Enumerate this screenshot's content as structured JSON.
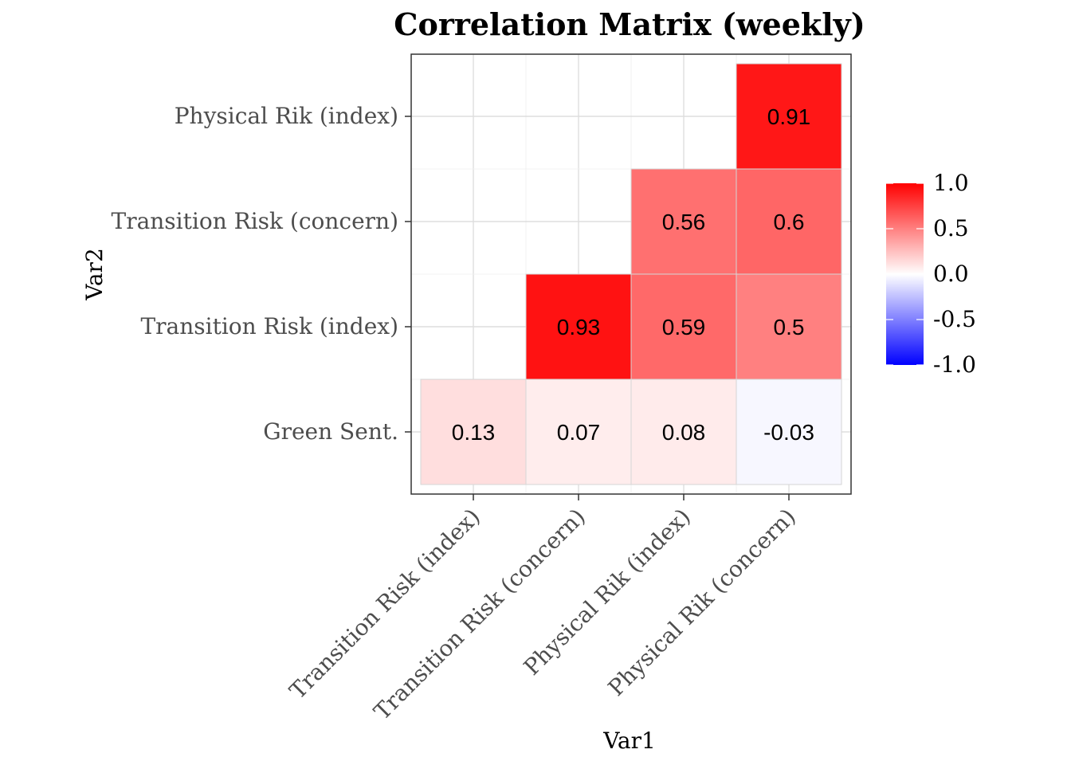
{
  "chart_data": {
    "type": "heatmap",
    "title": "Correlation Matrix (weekly)",
    "xlabel": "Var1",
    "ylabel": "Var2",
    "x_categories": [
      "Transition Risk (index)",
      "Transition Risk (concern)",
      "Physical Rik (index)",
      "Physical Rik (concern)"
    ],
    "y_categories": [
      "Green Sent.",
      "Transition Risk (index)",
      "Transition Risk (concern)",
      "Physical Rik (index)"
    ],
    "cells": [
      {
        "x": "Transition Risk (index)",
        "y": "Green Sent.",
        "value": 0.13,
        "label": "0.13"
      },
      {
        "x": "Transition Risk (concern)",
        "y": "Green Sent.",
        "value": 0.07,
        "label": "0.07"
      },
      {
        "x": "Physical Rik (index)",
        "y": "Green Sent.",
        "value": 0.08,
        "label": "0.08"
      },
      {
        "x": "Physical Rik (concern)",
        "y": "Green Sent.",
        "value": -0.03,
        "label": "-0.03"
      },
      {
        "x": "Transition Risk (concern)",
        "y": "Transition Risk (index)",
        "value": 0.93,
        "label": "0.93"
      },
      {
        "x": "Physical Rik (index)",
        "y": "Transition Risk (index)",
        "value": 0.59,
        "label": "0.59"
      },
      {
        "x": "Physical Rik (concern)",
        "y": "Transition Risk (index)",
        "value": 0.5,
        "label": "0.5"
      },
      {
        "x": "Physical Rik (index)",
        "y": "Transition Risk (concern)",
        "value": 0.56,
        "label": "0.56"
      },
      {
        "x": "Physical Rik (concern)",
        "y": "Transition Risk (concern)",
        "value": 0.6,
        "label": "0.6"
      },
      {
        "x": "Physical Rik (concern)",
        "y": "Physical Rik (index)",
        "value": 0.91,
        "label": "0.91"
      }
    ],
    "color_scale": {
      "low": "#0000ff",
      "mid": "#ffffff",
      "high": "#ff0000",
      "limits": [
        -1.0,
        1.0
      ],
      "ticks": [
        1.0,
        0.5,
        0.0,
        -0.5,
        -1.0
      ],
      "tick_labels": [
        "1.0",
        "0.5",
        "0.0",
        "-0.5",
        "-1.0"
      ]
    },
    "legend_position": "right",
    "grid": true
  }
}
